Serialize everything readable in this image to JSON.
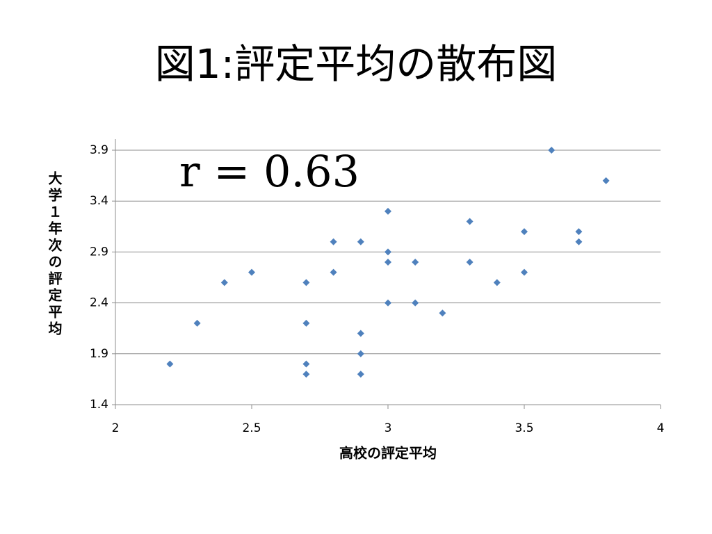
{
  "chart_data": {
    "type": "scatter",
    "title": "図1:評定平均の散布図",
    "annotation": "r = 0.63",
    "x_label": "高校の評定平均",
    "y_label": "大学１年次の評定平均",
    "x": [
      2.2,
      2.3,
      2.4,
      2.5,
      2.7,
      2.7,
      2.7,
      2.7,
      2.8,
      2.8,
      2.9,
      2.9,
      2.9,
      2.9,
      3.0,
      3.0,
      3.0,
      3.0,
      3.1,
      3.1,
      3.2,
      3.3,
      3.3,
      3.4,
      3.5,
      3.5,
      3.6,
      3.7,
      3.7,
      3.8
    ],
    "values": [
      1.8,
      2.2,
      2.6,
      2.7,
      2.6,
      2.2,
      1.8,
      1.7,
      3.0,
      2.7,
      3.0,
      2.1,
      1.9,
      1.7,
      3.3,
      2.9,
      2.8,
      2.4,
      2.8,
      2.4,
      2.3,
      3.2,
      2.8,
      2.6,
      3.1,
      2.7,
      3.9,
      3.1,
      3.0,
      3.6
    ],
    "color": "#4f81bd",
    "xlim": [
      2,
      4
    ],
    "ylim": [
      1.4,
      3.9
    ],
    "xticks": [
      2,
      2.5,
      3,
      3.5,
      4
    ],
    "yticks": [
      1.4,
      1.9,
      2.4,
      2.9,
      3.4,
      3.9
    ],
    "grid": true
  }
}
